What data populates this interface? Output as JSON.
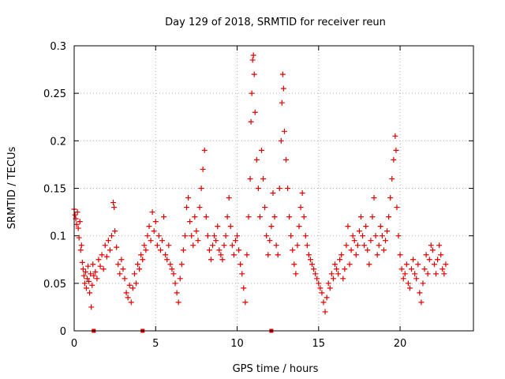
{
  "chart_data": {
    "type": "scatter",
    "title": "Day 129 of 2018, SRMTID for receiver reun",
    "xlabel": "GPS time / hours",
    "ylabel": "SRMTID / TECUs",
    "xlim": [
      0,
      24.5
    ],
    "ylim": [
      0,
      0.3
    ],
    "x_ticks": [
      "0",
      "5",
      "10",
      "15",
      "20"
    ],
    "x_tick_values": [
      0,
      5,
      10,
      15,
      20
    ],
    "y_ticks": [
      "0",
      "0.05",
      "0.1",
      "0.15",
      "0.2",
      "0.25",
      "0.3"
    ],
    "y_tick_values": [
      0,
      0.05,
      0.1,
      0.15,
      0.2,
      0.25,
      0.3
    ],
    "grid": true,
    "marker": "+",
    "color": "#e00000",
    "series": [
      {
        "name": "SRMTID",
        "points": [
          [
            0.0,
            0.128
          ],
          [
            0.05,
            0.122
          ],
          [
            0.1,
            0.118
          ],
          [
            0.15,
            0.112
          ],
          [
            0.2,
            0.125
          ],
          [
            0.25,
            0.108
          ],
          [
            0.3,
            0.098
          ],
          [
            0.35,
            0.115
          ],
          [
            0.4,
            0.085
          ],
          [
            0.45,
            0.09
          ],
          [
            0.5,
            0.072
          ],
          [
            0.55,
            0.065
          ],
          [
            0.6,
            0.058
          ],
          [
            0.65,
            0.05
          ],
          [
            0.7,
            0.062
          ],
          [
            0.75,
            0.045
          ],
          [
            0.8,
            0.055
          ],
          [
            0.85,
            0.068
          ],
          [
            0.9,
            0.052
          ],
          [
            0.95,
            0.04
          ],
          [
            1.0,
            0.06
          ],
          [
            1.05,
            0.025
          ],
          [
            1.1,
            0.048
          ],
          [
            1.15,
            0.07
          ],
          [
            1.2,
            0.058
          ],
          [
            1.3,
            0.062
          ],
          [
            1.4,
            0.055
          ],
          [
            1.5,
            0.075
          ],
          [
            1.6,
            0.068
          ],
          [
            1.7,
            0.08
          ],
          [
            1.8,
            0.065
          ],
          [
            1.9,
            0.09
          ],
          [
            2.0,
            0.078
          ],
          [
            2.1,
            0.095
          ],
          [
            2.2,
            0.085
          ],
          [
            2.3,
            0.1
          ],
          [
            2.4,
            0.135
          ],
          [
            2.45,
            0.13
          ],
          [
            2.5,
            0.105
          ],
          [
            2.6,
            0.088
          ],
          [
            2.7,
            0.07
          ],
          [
            2.8,
            0.06
          ],
          [
            2.9,
            0.075
          ],
          [
            3.0,
            0.065
          ],
          [
            3.1,
            0.055
          ],
          [
            3.2,
            0.04
          ],
          [
            3.3,
            0.035
          ],
          [
            3.4,
            0.048
          ],
          [
            3.5,
            0.03
          ],
          [
            3.6,
            0.045
          ],
          [
            3.7,
            0.06
          ],
          [
            3.8,
            0.05
          ],
          [
            3.9,
            0.07
          ],
          [
            4.0,
            0.065
          ],
          [
            4.1,
            0.08
          ],
          [
            4.2,
            0.075
          ],
          [
            4.3,
            0.09
          ],
          [
            4.4,
            0.085
          ],
          [
            4.5,
            0.1
          ],
          [
            4.6,
            0.11
          ],
          [
            4.7,
            0.095
          ],
          [
            4.8,
            0.125
          ],
          [
            4.9,
            0.105
          ],
          [
            5.0,
            0.115
          ],
          [
            5.1,
            0.09
          ],
          [
            5.2,
            0.1
          ],
          [
            5.3,
            0.085
          ],
          [
            5.4,
            0.095
          ],
          [
            5.5,
            0.12
          ],
          [
            5.6,
            0.08
          ],
          [
            5.7,
            0.075
          ],
          [
            5.8,
            0.09
          ],
          [
            5.9,
            0.07
          ],
          [
            6.0,
            0.065
          ],
          [
            6.1,
            0.06
          ],
          [
            6.2,
            0.05
          ],
          [
            6.3,
            0.04
          ],
          [
            6.4,
            0.03
          ],
          [
            6.5,
            0.055
          ],
          [
            6.6,
            0.07
          ],
          [
            6.7,
            0.085
          ],
          [
            6.8,
            0.1
          ],
          [
            6.9,
            0.13
          ],
          [
            7.0,
            0.14
          ],
          [
            7.1,
            0.115
          ],
          [
            7.2,
            0.1
          ],
          [
            7.3,
            0.09
          ],
          [
            7.4,
            0.12
          ],
          [
            7.5,
            0.105
          ],
          [
            7.6,
            0.095
          ],
          [
            7.7,
            0.13
          ],
          [
            7.8,
            0.15
          ],
          [
            7.9,
            0.17
          ],
          [
            8.0,
            0.19
          ],
          [
            8.1,
            0.12
          ],
          [
            8.2,
            0.1
          ],
          [
            8.3,
            0.085
          ],
          [
            8.4,
            0.075
          ],
          [
            8.5,
            0.09
          ],
          [
            8.6,
            0.1
          ],
          [
            8.7,
            0.095
          ],
          [
            8.8,
            0.11
          ],
          [
            8.9,
            0.085
          ],
          [
            9.0,
            0.08
          ],
          [
            9.1,
            0.075
          ],
          [
            9.2,
            0.09
          ],
          [
            9.3,
            0.1
          ],
          [
            9.4,
            0.12
          ],
          [
            9.5,
            0.14
          ],
          [
            9.6,
            0.11
          ],
          [
            9.7,
            0.09
          ],
          [
            9.8,
            0.08
          ],
          [
            9.9,
            0.095
          ],
          [
            10.0,
            0.1
          ],
          [
            10.1,
            0.085
          ],
          [
            10.2,
            0.07
          ],
          [
            10.3,
            0.06
          ],
          [
            10.4,
            0.045
          ],
          [
            10.5,
            0.03
          ],
          [
            10.6,
            0.08
          ],
          [
            10.7,
            0.12
          ],
          [
            10.8,
            0.16
          ],
          [
            10.85,
            0.22
          ],
          [
            10.9,
            0.25
          ],
          [
            10.95,
            0.285
          ],
          [
            11.0,
            0.29
          ],
          [
            11.05,
            0.27
          ],
          [
            11.1,
            0.23
          ],
          [
            11.2,
            0.18
          ],
          [
            11.3,
            0.15
          ],
          [
            11.4,
            0.12
          ],
          [
            11.5,
            0.19
          ],
          [
            11.6,
            0.16
          ],
          [
            11.7,
            0.13
          ],
          [
            11.8,
            0.1
          ],
          [
            11.9,
            0.08
          ],
          [
            12.0,
            0.095
          ],
          [
            12.1,
            0.11
          ],
          [
            12.2,
            0.145
          ],
          [
            12.3,
            0.12
          ],
          [
            12.4,
            0.09
          ],
          [
            12.5,
            0.08
          ],
          [
            12.6,
            0.15
          ],
          [
            12.7,
            0.2
          ],
          [
            12.75,
            0.24
          ],
          [
            12.8,
            0.27
          ],
          [
            12.85,
            0.255
          ],
          [
            12.9,
            0.21
          ],
          [
            13.0,
            0.18
          ],
          [
            13.1,
            0.15
          ],
          [
            13.2,
            0.12
          ],
          [
            13.3,
            0.1
          ],
          [
            13.4,
            0.085
          ],
          [
            13.5,
            0.07
          ],
          [
            13.6,
            0.06
          ],
          [
            13.7,
            0.09
          ],
          [
            13.8,
            0.11
          ],
          [
            13.9,
            0.13
          ],
          [
            14.0,
            0.145
          ],
          [
            14.1,
            0.12
          ],
          [
            14.2,
            0.1
          ],
          [
            14.3,
            0.09
          ],
          [
            14.4,
            0.08
          ],
          [
            14.5,
            0.075
          ],
          [
            14.6,
            0.07
          ],
          [
            14.7,
            0.065
          ],
          [
            14.8,
            0.06
          ],
          [
            14.9,
            0.055
          ],
          [
            15.0,
            0.05
          ],
          [
            15.1,
            0.045
          ],
          [
            15.2,
            0.04
          ],
          [
            15.3,
            0.03
          ],
          [
            15.4,
            0.02
          ],
          [
            15.5,
            0.035
          ],
          [
            15.6,
            0.05
          ],
          [
            15.7,
            0.045
          ],
          [
            15.8,
            0.06
          ],
          [
            15.9,
            0.055
          ],
          [
            16.0,
            0.07
          ],
          [
            16.1,
            0.065
          ],
          [
            16.2,
            0.06
          ],
          [
            16.3,
            0.075
          ],
          [
            16.4,
            0.08
          ],
          [
            16.5,
            0.055
          ],
          [
            16.6,
            0.065
          ],
          [
            16.7,
            0.09
          ],
          [
            16.8,
            0.11
          ],
          [
            16.9,
            0.07
          ],
          [
            17.0,
            0.085
          ],
          [
            17.1,
            0.1
          ],
          [
            17.2,
            0.095
          ],
          [
            17.3,
            0.08
          ],
          [
            17.4,
            0.09
          ],
          [
            17.5,
            0.105
          ],
          [
            17.6,
            0.12
          ],
          [
            17.7,
            0.1
          ],
          [
            17.8,
            0.09
          ],
          [
            17.9,
            0.11
          ],
          [
            18.0,
            0.085
          ],
          [
            18.1,
            0.07
          ],
          [
            18.2,
            0.095
          ],
          [
            18.3,
            0.12
          ],
          [
            18.4,
            0.14
          ],
          [
            18.5,
            0.1
          ],
          [
            18.6,
            0.08
          ],
          [
            18.7,
            0.09
          ],
          [
            18.8,
            0.11
          ],
          [
            18.9,
            0.1
          ],
          [
            19.0,
            0.085
          ],
          [
            19.1,
            0.095
          ],
          [
            19.2,
            0.105
          ],
          [
            19.3,
            0.12
          ],
          [
            19.4,
            0.14
          ],
          [
            19.5,
            0.16
          ],
          [
            19.6,
            0.18
          ],
          [
            19.7,
            0.205
          ],
          [
            19.75,
            0.19
          ],
          [
            19.8,
            0.13
          ],
          [
            19.9,
            0.1
          ],
          [
            20.0,
            0.08
          ],
          [
            20.1,
            0.065
          ],
          [
            20.2,
            0.055
          ],
          [
            20.3,
            0.06
          ],
          [
            20.4,
            0.07
          ],
          [
            20.5,
            0.05
          ],
          [
            20.6,
            0.045
          ],
          [
            20.7,
            0.065
          ],
          [
            20.8,
            0.075
          ],
          [
            20.9,
            0.06
          ],
          [
            21.0,
            0.055
          ],
          [
            21.1,
            0.07
          ],
          [
            21.2,
            0.04
          ],
          [
            21.3,
            0.03
          ],
          [
            21.4,
            0.05
          ],
          [
            21.5,
            0.065
          ],
          [
            21.6,
            0.08
          ],
          [
            21.7,
            0.06
          ],
          [
            21.8,
            0.075
          ],
          [
            21.9,
            0.09
          ],
          [
            22.0,
            0.085
          ],
          [
            22.1,
            0.07
          ],
          [
            22.2,
            0.06
          ],
          [
            22.3,
            0.075
          ],
          [
            22.4,
            0.09
          ],
          [
            22.5,
            0.08
          ],
          [
            22.6,
            0.065
          ],
          [
            22.7,
            0.06
          ],
          [
            22.8,
            0.07
          ]
        ]
      }
    ],
    "zero_points": [
      [
        1.2,
        0.0
      ],
      [
        4.2,
        0.0
      ],
      [
        12.1,
        0.0
      ]
    ]
  }
}
